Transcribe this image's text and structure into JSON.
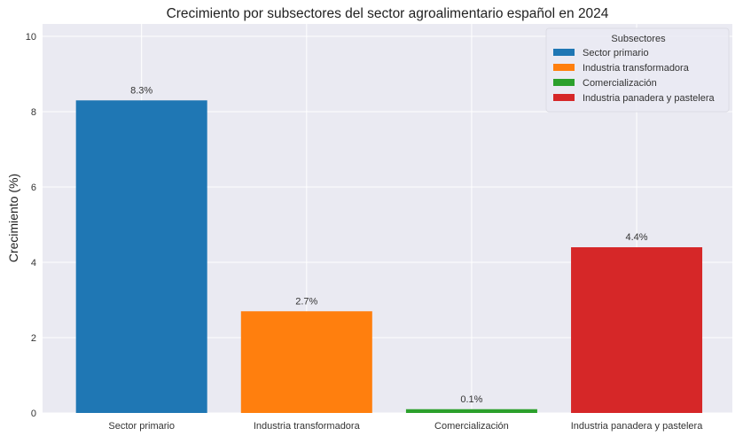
{
  "chart_data": {
    "type": "bar",
    "title": "Crecimiento por subsectores del sector agroalimentario español en 2024",
    "xlabel": "",
    "ylabel": "Crecimiento (%)",
    "categories": [
      "Sector primario",
      "Industria transformadora",
      "Comercialización",
      "Industria panadera y pastelera"
    ],
    "values": [
      8.3,
      2.7,
      0.1,
      4.4
    ],
    "data_labels": [
      "8.3%",
      "2.7%",
      "0.1%",
      "4.4%"
    ],
    "colors": [
      "#1f77b4",
      "#ff7f0e",
      "#2ca02c",
      "#d62728"
    ],
    "ylim": [
      0,
      10.33
    ],
    "yticks": [
      0,
      2,
      4,
      6,
      8,
      10
    ],
    "grid": true,
    "background": "#eaeaf2",
    "legend": {
      "title": "Subsectores",
      "placement": "top-right",
      "entries": [
        "Sector primario",
        "Industria transformadora",
        "Comercialización",
        "Industria panadera y pastelera"
      ]
    }
  }
}
